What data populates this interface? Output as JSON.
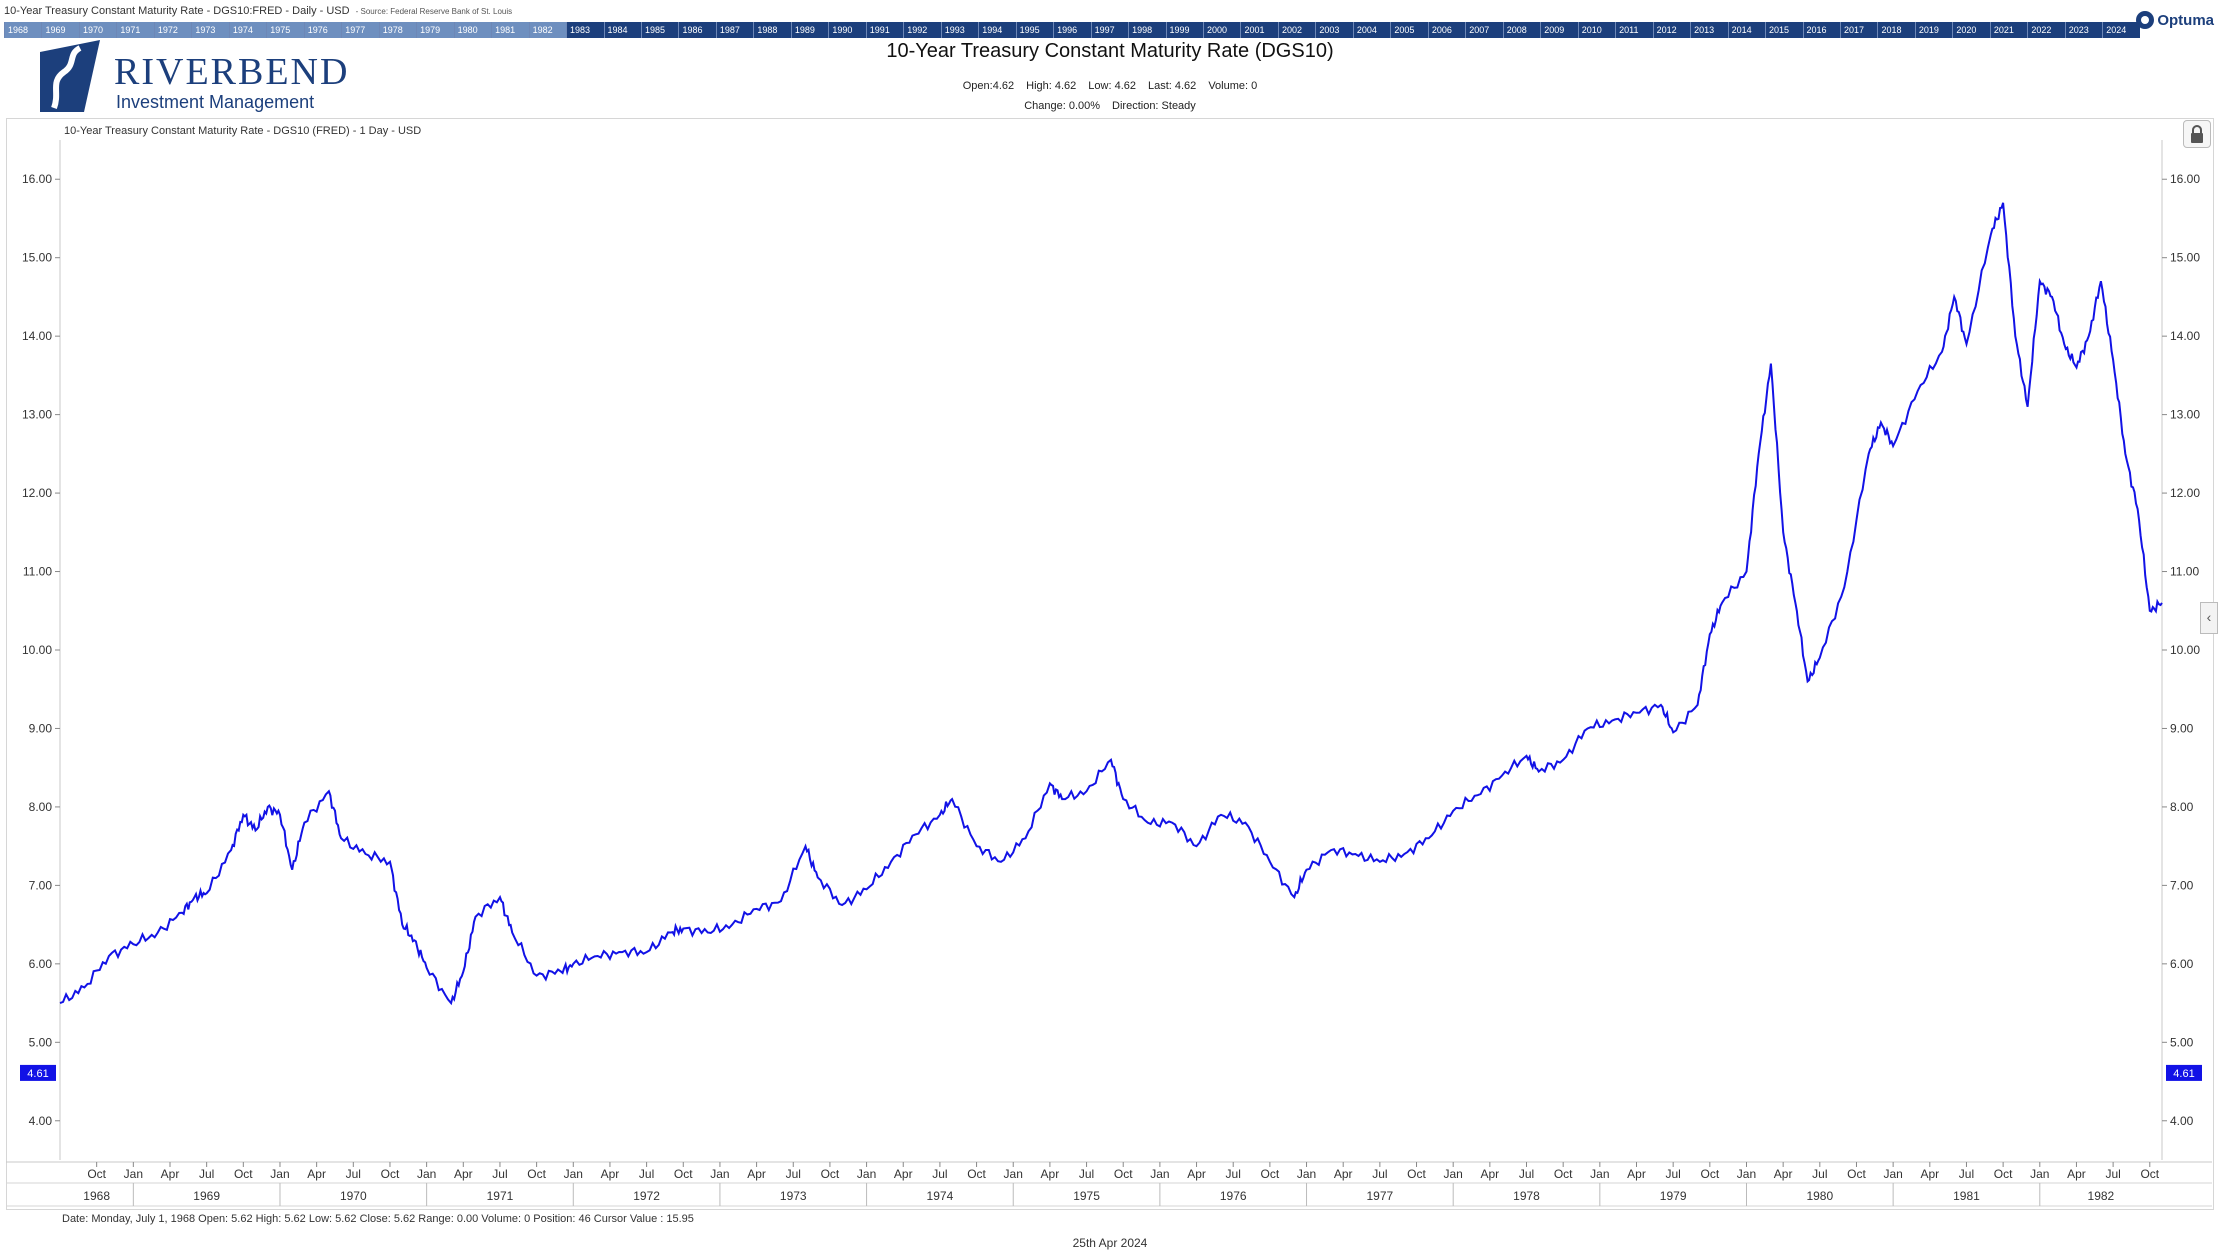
{
  "header": {
    "window_title": "10-Year Treasury Constant Maturity Rate - DGS10:FRED - Daily - USD",
    "source": "- Source: Federal Reserve Bank of St. Louis",
    "brand": "Optuma"
  },
  "year_strip": {
    "years": [
      "1968",
      "1969",
      "1970",
      "1971",
      "1972",
      "1973",
      "1974",
      "1975",
      "1976",
      "1977",
      "1978",
      "1979",
      "1980",
      "1981",
      "1982",
      "1983",
      "1984",
      "1985",
      "1986",
      "1987",
      "1988",
      "1989",
      "1990",
      "1991",
      "1992",
      "1993",
      "1994",
      "1995",
      "1996",
      "1997",
      "1998",
      "1999",
      "2000",
      "2001",
      "2002",
      "2003",
      "2004",
      "2005",
      "2006",
      "2007",
      "2008",
      "2009",
      "2010",
      "2011",
      "2012",
      "2013",
      "2014",
      "2015",
      "2016",
      "2017",
      "2018",
      "2019",
      "2020",
      "2021",
      "2022",
      "2023",
      "2024"
    ],
    "highlight_range": [
      "1968",
      "1982"
    ]
  },
  "logo": {
    "name": "RIVERBEND",
    "subtitle": "Investment Management"
  },
  "chart_header": {
    "title": "10-Year Treasury Constant Maturity Rate (DGS10)",
    "stats_line1": [
      "Open:4.62",
      "High: 4.62",
      "Low: 4.62",
      "Last: 4.62",
      "Volume: 0"
    ],
    "stats_line2": [
      "Change: 0.00%",
      "Direction: Steady"
    ],
    "series_label": "10-Year Treasury Constant Maturity Rate - DGS10 (FRED) - 1 Day - USD"
  },
  "status": {
    "data_line": "Date: Monday, July 1, 1968 Open: 5.62 High: 5.62 Low: 5.62 Close: 5.62 Range: 0.00 Volume: 0 Position: 46 Cursor Value : 15.95",
    "footer_date": "25th Apr 2024"
  },
  "colors": {
    "series": "#1212e6",
    "yearbar": "#1c3f7c",
    "price_tag": "#1212e6"
  },
  "chart_data": {
    "type": "line",
    "title": "10-Year Treasury Constant Maturity Rate (DGS10)",
    "ylabel": "",
    "xlabel": "",
    "ylim": [
      3.5,
      16.5
    ],
    "y_ticks": [
      "4.00",
      "5.00",
      "6.00",
      "7.00",
      "8.00",
      "9.00",
      "10.00",
      "11.00",
      "12.00",
      "13.00",
      "14.00",
      "15.00",
      "16.00"
    ],
    "last_value_tag": "4.61",
    "x_range": [
      "1968-07",
      "1982-11"
    ],
    "month_ticks": [
      [
        "1968-10",
        "Oct"
      ],
      [
        "1969-01",
        "Jan"
      ],
      [
        "1969-04",
        "Apr"
      ],
      [
        "1969-07",
        "Jul"
      ],
      [
        "1969-10",
        "Oct"
      ],
      [
        "1970-01",
        "Jan"
      ],
      [
        "1970-04",
        "Apr"
      ],
      [
        "1970-07",
        "Jul"
      ],
      [
        "1970-10",
        "Oct"
      ],
      [
        "1971-01",
        "Jan"
      ],
      [
        "1971-04",
        "Apr"
      ],
      [
        "1971-07",
        "Jul"
      ],
      [
        "1971-10",
        "Oct"
      ],
      [
        "1972-01",
        "Jan"
      ],
      [
        "1972-04",
        "Apr"
      ],
      [
        "1972-07",
        "Jul"
      ],
      [
        "1972-10",
        "Oct"
      ],
      [
        "1973-01",
        "Jan"
      ],
      [
        "1973-04",
        "Apr"
      ],
      [
        "1973-07",
        "Jul"
      ],
      [
        "1973-10",
        "Oct"
      ],
      [
        "1974-01",
        "Jan"
      ],
      [
        "1974-04",
        "Apr"
      ],
      [
        "1974-07",
        "Jul"
      ],
      [
        "1974-10",
        "Oct"
      ],
      [
        "1975-01",
        "Jan"
      ],
      [
        "1975-04",
        "Apr"
      ],
      [
        "1975-07",
        "Jul"
      ],
      [
        "1975-10",
        "Oct"
      ],
      [
        "1976-01",
        "Jan"
      ],
      [
        "1976-04",
        "Apr"
      ],
      [
        "1976-07",
        "Jul"
      ],
      [
        "1976-10",
        "Oct"
      ],
      [
        "1977-01",
        "Jan"
      ],
      [
        "1977-04",
        "Apr"
      ],
      [
        "1977-07",
        "Jul"
      ],
      [
        "1977-10",
        "Oct"
      ],
      [
        "1978-01",
        "Jan"
      ],
      [
        "1978-04",
        "Apr"
      ],
      [
        "1978-07",
        "Jul"
      ],
      [
        "1978-10",
        "Oct"
      ],
      [
        "1979-01",
        "Jan"
      ],
      [
        "1979-04",
        "Apr"
      ],
      [
        "1979-07",
        "Jul"
      ],
      [
        "1979-10",
        "Oct"
      ],
      [
        "1980-01",
        "Jan"
      ],
      [
        "1980-04",
        "Apr"
      ],
      [
        "1980-07",
        "Jul"
      ],
      [
        "1980-10",
        "Oct"
      ],
      [
        "1981-01",
        "Jan"
      ],
      [
        "1981-04",
        "Apr"
      ],
      [
        "1981-07",
        "Jul"
      ],
      [
        "1981-10",
        "Oct"
      ],
      [
        "1982-01",
        "Jan"
      ],
      [
        "1982-04",
        "Apr"
      ],
      [
        "1982-07",
        "Jul"
      ],
      [
        "1982-10",
        "Oct"
      ]
    ],
    "year_labels": [
      "1968",
      "1969",
      "1970",
      "1971",
      "1972",
      "1973",
      "1974",
      "1975",
      "1976",
      "1977",
      "1978",
      "1979",
      "1980",
      "1981",
      "1982"
    ],
    "series": [
      {
        "x": [
          "1968-07",
          "1968-09",
          "1968-11",
          "1969-01",
          "1969-03",
          "1969-05",
          "1969-06",
          "1969-07",
          "1969-09",
          "1969-10",
          "1969-11",
          "1969-12",
          "1970-01",
          "1970-02",
          "1970-03",
          "1970-05",
          "1970-06",
          "1970-08",
          "1970-10",
          "1970-11",
          "1970-12",
          "1971-01",
          "1971-03",
          "1971-04",
          "1971-05",
          "1971-07",
          "1971-08",
          "1971-10",
          "1971-12",
          "1972-01",
          "1972-03",
          "1972-05",
          "1972-07",
          "1972-09",
          "1972-10",
          "1972-12",
          "1973-02",
          "1973-04",
          "1973-06",
          "1973-08",
          "1973-09",
          "1973-11",
          "1974-01",
          "1974-03",
          "1974-05",
          "1974-07",
          "1974-08",
          "1974-10",
          "1974-12",
          "1975-02",
          "1975-04",
          "1975-05",
          "1975-07",
          "1975-09",
          "1975-10",
          "1975-12",
          "1976-02",
          "1976-04",
          "1976-06",
          "1976-08",
          "1976-10",
          "1976-12",
          "1977-01",
          "1977-03",
          "1977-05",
          "1977-07",
          "1977-09",
          "1977-11",
          "1978-01",
          "1978-03",
          "1978-05",
          "1978-07",
          "1978-08",
          "1978-10",
          "1978-12",
          "1979-02",
          "1979-04",
          "1979-06",
          "1979-07",
          "1979-09",
          "1979-10",
          "1979-11",
          "1980-01",
          "1980-02",
          "1980-03",
          "1980-04",
          "1980-05",
          "1980-06",
          "1980-07",
          "1980-09",
          "1980-11",
          "1980-12",
          "1981-01",
          "1981-03",
          "1981-05",
          "1981-06",
          "1981-07",
          "1981-09",
          "1981-10",
          "1981-11",
          "1981-12",
          "1982-01",
          "1982-02",
          "1982-03",
          "1982-04",
          "1982-05",
          "1982-06",
          "1982-07",
          "1982-08",
          "1982-09",
          "1982-10",
          "1982-11"
        ],
        "values": [
          5.5,
          5.7,
          6.1,
          6.25,
          6.4,
          6.65,
          6.85,
          6.9,
          7.45,
          7.9,
          7.7,
          8.0,
          7.9,
          7.2,
          7.8,
          8.2,
          7.6,
          7.4,
          7.3,
          6.5,
          6.3,
          5.95,
          5.5,
          5.9,
          6.6,
          6.85,
          6.4,
          5.85,
          5.9,
          6.0,
          6.1,
          6.15,
          6.15,
          6.4,
          6.45,
          6.4,
          6.5,
          6.7,
          6.8,
          7.5,
          7.1,
          6.75,
          6.95,
          7.3,
          7.65,
          7.9,
          8.1,
          7.5,
          7.3,
          7.6,
          8.3,
          8.1,
          8.2,
          8.6,
          8.1,
          7.8,
          7.8,
          7.5,
          7.9,
          7.8,
          7.3,
          6.85,
          7.2,
          7.45,
          7.4,
          7.3,
          7.4,
          7.6,
          7.95,
          8.15,
          8.4,
          8.65,
          8.45,
          8.6,
          9.0,
          9.1,
          9.2,
          9.3,
          8.95,
          9.3,
          10.2,
          10.6,
          11.0,
          12.5,
          13.65,
          11.5,
          10.6,
          9.6,
          9.9,
          10.8,
          12.5,
          12.9,
          12.6,
          13.3,
          13.8,
          14.5,
          13.9,
          15.3,
          15.7,
          14.0,
          13.1,
          14.7,
          14.5,
          13.9,
          13.6,
          14.0,
          14.7,
          13.7,
          12.5,
          11.8,
          10.5,
          10.6
        ]
      }
    ]
  }
}
